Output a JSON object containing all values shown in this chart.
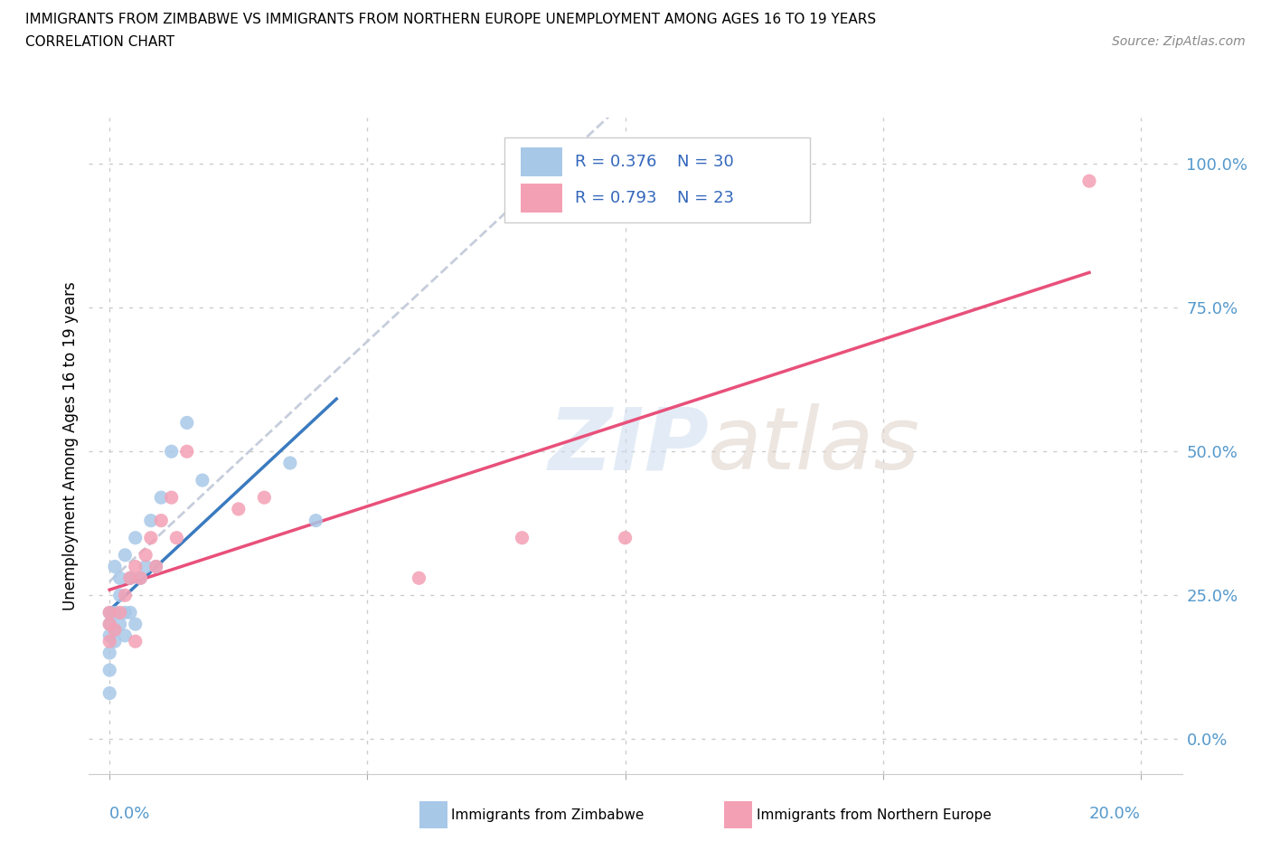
{
  "title_line1": "IMMIGRANTS FROM ZIMBABWE VS IMMIGRANTS FROM NORTHERN EUROPE UNEMPLOYMENT AMONG AGES 16 TO 19 YEARS",
  "title_line2": "CORRELATION CHART",
  "source": "Source: ZipAtlas.com",
  "ylabel": "Unemployment Among Ages 16 to 19 years",
  "r_zimbabwe": 0.376,
  "n_zimbabwe": 30,
  "r_northern_europe": 0.793,
  "n_northern_europe": 23,
  "zimbabwe_color": "#a8c8e8",
  "northern_europe_color": "#f4a0b4",
  "zimbabwe_line_color": "#3a7abf",
  "northern_europe_line_color": "#e8507a",
  "trendline_color_grey": "#c0c8d8",
  "xlim": [
    -0.004,
    0.208
  ],
  "ylim": [
    -0.06,
    1.08
  ],
  "x_tick_positions": [
    0.0,
    0.05,
    0.1,
    0.15,
    0.2
  ],
  "y_tick_positions": [
    0.0,
    0.25,
    0.5,
    0.75,
    1.0
  ],
  "zimbabwe_scatter_x": [
    0.0,
    0.0,
    0.0,
    0.0,
    0.0,
    0.0,
    0.001,
    0.001,
    0.001,
    0.001,
    0.002,
    0.002,
    0.002,
    0.003,
    0.003,
    0.003,
    0.004,
    0.004,
    0.005,
    0.005,
    0.006,
    0.007,
    0.008,
    0.009,
    0.01,
    0.012,
    0.015,
    0.018,
    0.035,
    0.04
  ],
  "zimbabwe_scatter_y": [
    0.18,
    0.2,
    0.22,
    0.15,
    0.08,
    0.12,
    0.17,
    0.3,
    0.22,
    0.19,
    0.25,
    0.28,
    0.2,
    0.22,
    0.32,
    0.18,
    0.28,
    0.22,
    0.35,
    0.2,
    0.28,
    0.3,
    0.38,
    0.3,
    0.42,
    0.5,
    0.55,
    0.45,
    0.48,
    0.38
  ],
  "northern_europe_scatter_x": [
    0.0,
    0.0,
    0.0,
    0.001,
    0.002,
    0.003,
    0.004,
    0.005,
    0.005,
    0.006,
    0.007,
    0.008,
    0.009,
    0.01,
    0.012,
    0.013,
    0.015,
    0.025,
    0.03,
    0.06,
    0.08,
    0.1,
    0.19
  ],
  "northern_europe_scatter_y": [
    0.17,
    0.2,
    0.22,
    0.19,
    0.22,
    0.25,
    0.28,
    0.17,
    0.3,
    0.28,
    0.32,
    0.35,
    0.3,
    0.38,
    0.42,
    0.35,
    0.5,
    0.4,
    0.42,
    0.28,
    0.35,
    0.35,
    0.97
  ]
}
